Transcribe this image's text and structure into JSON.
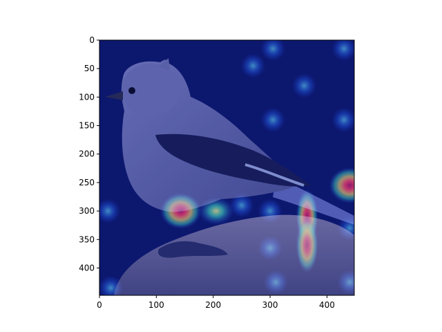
{
  "figure": {
    "image_subject": "bird",
    "colormap": "jet",
    "background_color": "#0b1560",
    "bird_color": "#5a5fa8",
    "rock_color": "#6b6b9a"
  },
  "axes": {
    "xlim": [
      0,
      448
    ],
    "ylim": [
      448,
      0
    ],
    "x_ticks": [
      0,
      100,
      200,
      300,
      400
    ],
    "y_ticks": [
      0,
      50,
      100,
      150,
      200,
      250,
      300,
      350,
      400
    ],
    "x_tick_labels": [
      "0",
      "100",
      "200",
      "300",
      "400"
    ],
    "y_tick_labels": [
      "0",
      "50",
      "100",
      "150",
      "200",
      "250",
      "300",
      "350",
      "400"
    ]
  },
  "heatmap_hotspots": [
    {
      "x": 143,
      "y": 300,
      "level": 1.0
    },
    {
      "x": 205,
      "y": 300,
      "level": 0.75
    },
    {
      "x": 365,
      "y": 310,
      "level": 0.95
    },
    {
      "x": 365,
      "y": 360,
      "level": 0.85
    },
    {
      "x": 440,
      "y": 255,
      "level": 0.95
    },
    {
      "x": 300,
      "y": 365,
      "level": 0.55
    },
    {
      "x": 270,
      "y": 45,
      "level": 0.45
    },
    {
      "x": 305,
      "y": 140,
      "level": 0.4
    },
    {
      "x": 360,
      "y": 80,
      "level": 0.35
    },
    {
      "x": 430,
      "y": 140,
      "level": 0.35
    },
    {
      "x": 430,
      "y": 15,
      "level": 0.35
    },
    {
      "x": 305,
      "y": 15,
      "level": 0.35
    },
    {
      "x": 15,
      "y": 300,
      "level": 0.4
    },
    {
      "x": 20,
      "y": 435,
      "level": 0.4
    },
    {
      "x": 310,
      "y": 425,
      "level": 0.35
    },
    {
      "x": 440,
      "y": 425,
      "level": 0.35
    },
    {
      "x": 300,
      "y": 300,
      "level": 0.5
    },
    {
      "x": 250,
      "y": 290,
      "level": 0.45
    },
    {
      "x": 440,
      "y": 330,
      "level": 0.45
    }
  ]
}
